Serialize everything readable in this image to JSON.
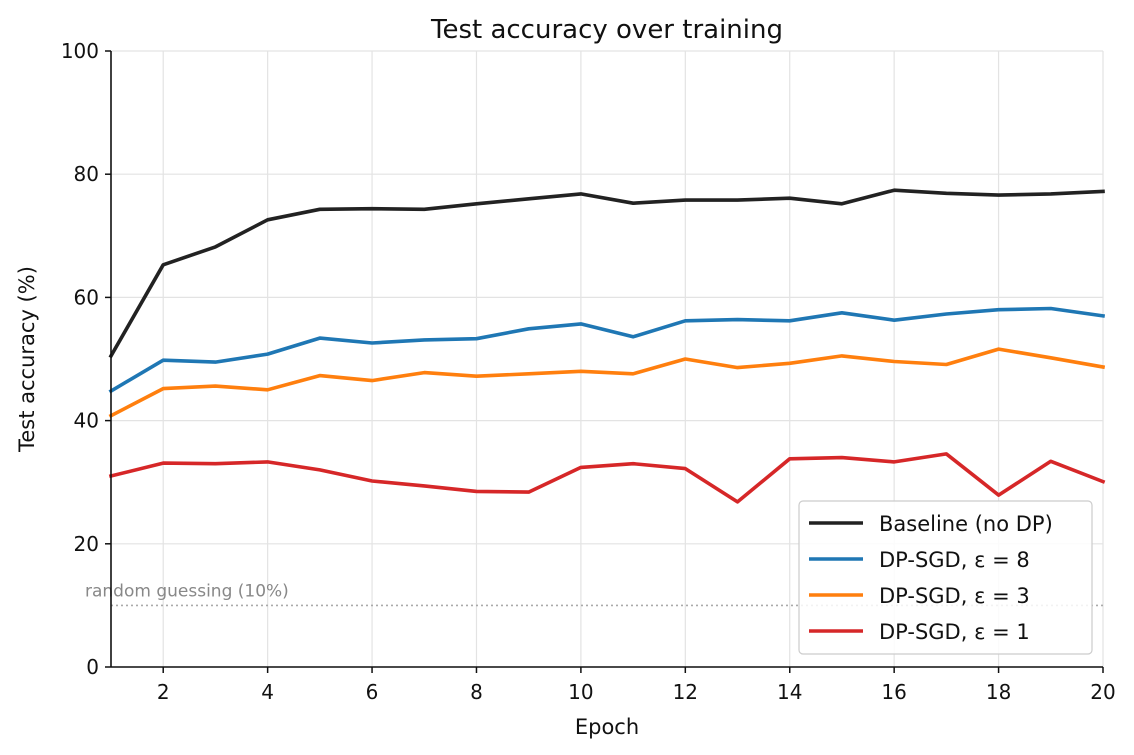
{
  "chart_data": {
    "type": "line",
    "title": "Test accuracy over training",
    "xlabel": "Epoch",
    "ylabel": "Test accuracy (%)",
    "xlim": [
      1,
      20
    ],
    "ylim": [
      0,
      100
    ],
    "xticks": [
      2,
      4,
      6,
      8,
      10,
      12,
      14,
      16,
      18,
      20
    ],
    "yticks": [
      0,
      20,
      40,
      60,
      80,
      100
    ],
    "grid": true,
    "legend_position": "bottom-right",
    "x": [
      1,
      2,
      3,
      4,
      5,
      6,
      7,
      8,
      9,
      10,
      11,
      12,
      13,
      14,
      15,
      16,
      17,
      18,
      19,
      20
    ],
    "series": [
      {
        "name": "Baseline (no DP)",
        "color": "#222222",
        "values": [
          50.5,
          65.3,
          68.2,
          72.6,
          74.3,
          74.4,
          74.3,
          75.2,
          76.0,
          76.8,
          75.3,
          75.8,
          75.8,
          76.1,
          75.2,
          77.4,
          76.9,
          76.6,
          76.8,
          77.2
        ]
      },
      {
        "name": "DP-SGD, ε = 8",
        "color": "#1f77b4",
        "values": [
          44.8,
          49.8,
          49.5,
          50.8,
          53.4,
          52.6,
          53.1,
          53.3,
          54.9,
          55.7,
          53.6,
          56.2,
          56.4,
          56.2,
          57.5,
          56.3,
          57.3,
          58.0,
          58.2,
          57.0
        ]
      },
      {
        "name": "DP-SGD, ε = 3",
        "color": "#ff7f0e",
        "values": [
          40.8,
          45.2,
          45.6,
          45.0,
          47.3,
          46.5,
          47.8,
          47.2,
          47.6,
          48.0,
          47.6,
          50.0,
          48.6,
          49.3,
          50.5,
          49.6,
          49.1,
          51.6,
          50.2,
          48.7
        ]
      },
      {
        "name": "DP-SGD, ε = 1",
        "color": "#d62728",
        "values": [
          31.0,
          33.1,
          33.0,
          33.3,
          32.0,
          30.2,
          29.4,
          28.5,
          28.4,
          32.4,
          33.0,
          32.2,
          26.8,
          33.8,
          34.0,
          33.3,
          34.6,
          27.9,
          33.4,
          30.1
        ]
      }
    ],
    "reference_line": {
      "y": 10,
      "label": "random guessing (10%)",
      "color": "#aaaaaa"
    }
  }
}
